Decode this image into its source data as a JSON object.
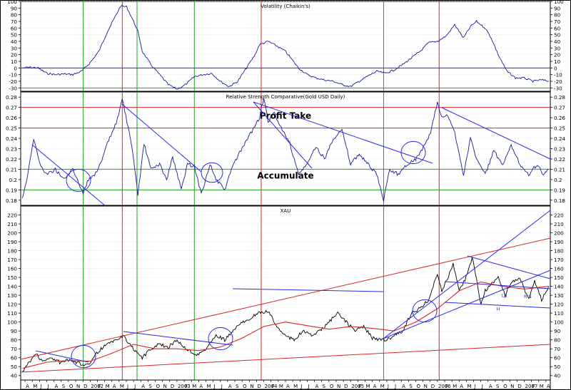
{
  "chart_data": [
    {
      "type": "line",
      "title": "Volatility (Chaikin's)",
      "ylim": [
        -35,
        100
      ],
      "y_ticks": [
        -30,
        -20,
        -10,
        0,
        10,
        20,
        30,
        40,
        50,
        60,
        70,
        80,
        90,
        100
      ],
      "h_lines": [
        {
          "y": 0,
          "color": "#2a2ae8"
        },
        {
          "y": -30,
          "color": "#22a022"
        }
      ],
      "series": [
        {
          "color": "#1a1a9c",
          "x": [
            2001.22,
            2001.3,
            2001.4,
            2001.5,
            2001.6,
            2001.7,
            2001.8,
            2001.9,
            2002.0,
            2002.1,
            2002.2,
            2002.3,
            2002.35,
            2002.42,
            2002.5,
            2002.55,
            2002.6,
            2002.7,
            2002.8,
            2002.9,
            2003.0,
            2003.1,
            2003.2,
            2003.3,
            2003.4,
            2003.5,
            2003.6,
            2003.7,
            2003.8,
            2003.9,
            2003.95,
            2004.05,
            2004.15,
            2004.25,
            2004.4,
            2004.5,
            2004.6,
            2004.7,
            2004.8,
            2004.9,
            2005.0,
            2005.1,
            2005.2,
            2005.3,
            2005.4,
            2005.5,
            2005.6,
            2005.7,
            2005.8,
            2005.9,
            2006.0,
            2006.1,
            2006.2,
            2006.3,
            2006.38,
            2006.45,
            2006.55,
            2006.62,
            2006.7,
            2006.8,
            2006.9,
            2007.0,
            2007.1,
            2007.2,
            2007.28
          ],
          "y": [
            0,
            1,
            0,
            -8,
            -10,
            -9,
            -10,
            -5,
            8,
            25,
            55,
            80,
            93,
            92,
            70,
            55,
            25,
            5,
            -10,
            -25,
            -32,
            -25,
            -13,
            -10,
            -8,
            -20,
            -28,
            -20,
            0,
            20,
            35,
            40,
            33,
            25,
            0,
            -10,
            -15,
            -18,
            -20,
            -25,
            -28,
            -20,
            -12,
            -5,
            -8,
            -3,
            5,
            15,
            25,
            38,
            40,
            48,
            65,
            45,
            62,
            70,
            60,
            45,
            20,
            -5,
            -15,
            -15,
            -20,
            -18,
            -20
          ]
        }
      ]
    },
    {
      "type": "line",
      "title": "Relative Strength Comparative(Gold USD Daily)",
      "ylim": [
        0.175,
        0.285
      ],
      "y_ticks": [
        0.18,
        0.19,
        0.2,
        0.21,
        0.22,
        0.23,
        0.24,
        0.25,
        0.26,
        0.27,
        0.28
      ],
      "h_lines": [
        {
          "y": 0.27,
          "color": "#d82828"
        },
        {
          "y": 0.25,
          "color": "#d82828"
        },
        {
          "y": 0.21,
          "color": "#22a022"
        },
        {
          "y": 0.19,
          "color": "#22a022"
        }
      ],
      "annotations": [
        {
          "text": "Profit Take",
          "x": 2004.25,
          "y": 0.259
        },
        {
          "text": "Accumulate",
          "x": 2004.25,
          "y": 0.201
        }
      ],
      "series": [
        {
          "color": "#1a1a9c",
          "x": [
            2001.22,
            2001.28,
            2001.35,
            2001.42,
            2001.5,
            2001.6,
            2001.7,
            2001.8,
            2001.92,
            2001.98,
            2002.05,
            2002.12,
            2002.2,
            2002.3,
            2002.37,
            2002.45,
            2002.5,
            2002.55,
            2002.62,
            2002.7,
            2002.8,
            2002.88,
            2002.95,
            2003.05,
            2003.12,
            2003.2,
            2003.28,
            2003.38,
            2003.45,
            2003.55,
            2003.65,
            2003.75,
            2003.85,
            2003.95,
            2004.0,
            2004.05,
            2004.12,
            2004.2,
            2004.3,
            2004.4,
            2004.5,
            2004.6,
            2004.7,
            2004.8,
            2004.9,
            2005.0,
            2005.1,
            2005.2,
            2005.3,
            2005.38,
            2005.45,
            2005.55,
            2005.65,
            2005.75,
            2005.85,
            2005.92,
            2006.0,
            2006.05,
            2006.12,
            2006.2,
            2006.3,
            2006.38,
            2006.45,
            2006.55,
            2006.65,
            2006.75,
            2006.85,
            2006.95,
            2007.05,
            2007.15,
            2007.22,
            2007.28
          ],
          "y": [
            0.182,
            0.205,
            0.24,
            0.215,
            0.205,
            0.21,
            0.2,
            0.21,
            0.187,
            0.2,
            0.205,
            0.215,
            0.235,
            0.255,
            0.278,
            0.245,
            0.22,
            0.185,
            0.235,
            0.21,
            0.215,
            0.2,
            0.222,
            0.19,
            0.215,
            0.213,
            0.186,
            0.215,
            0.2,
            0.19,
            0.215,
            0.23,
            0.245,
            0.26,
            0.28,
            0.255,
            0.265,
            0.25,
            0.235,
            0.205,
            0.215,
            0.232,
            0.22,
            0.24,
            0.248,
            0.215,
            0.225,
            0.215,
            0.205,
            0.18,
            0.21,
            0.205,
            0.215,
            0.22,
            0.233,
            0.245,
            0.275,
            0.26,
            0.262,
            0.245,
            0.205,
            0.24,
            0.22,
            0.205,
            0.228,
            0.213,
            0.233,
            0.215,
            0.205,
            0.215,
            0.205,
            0.21
          ]
        }
      ]
    },
    {
      "type": "line",
      "title": "XAU",
      "ylim": [
        35,
        230
      ],
      "y_ticks": [
        40,
        50,
        60,
        70,
        80,
        90,
        100,
        110,
        120,
        130,
        140,
        150,
        160,
        170,
        180,
        190,
        200,
        210,
        220
      ],
      "series": [
        {
          "color": "#000000",
          "x": [
            2001.22,
            2001.3,
            2001.38,
            2001.45,
            2001.55,
            2001.65,
            2001.75,
            2001.85,
            2001.92,
            2002.0,
            2002.1,
            2002.2,
            2002.3,
            2002.38,
            2002.45,
            2002.55,
            2002.6,
            2002.7,
            2002.8,
            2002.9,
            2003.0,
            2003.1,
            2003.2,
            2003.25,
            2003.35,
            2003.45,
            2003.55,
            2003.65,
            2003.75,
            2003.85,
            2003.95,
            2004.05,
            2004.15,
            2004.25,
            2004.35,
            2004.45,
            2004.55,
            2004.65,
            2004.75,
            2004.85,
            2004.95,
            2005.05,
            2005.15,
            2005.25,
            2005.35,
            2005.42,
            2005.5,
            2005.6,
            2005.7,
            2005.8,
            2005.9,
            2006.0,
            2006.05,
            2006.1,
            2006.18,
            2006.25,
            2006.33,
            2006.4,
            2006.45,
            2006.5,
            2006.55,
            2006.6,
            2006.7,
            2006.78,
            2006.85,
            2006.95,
            2007.05,
            2007.12,
            2007.2,
            2007.28
          ],
          "y": [
            45,
            55,
            65,
            55,
            60,
            55,
            57,
            54,
            52,
            55,
            68,
            75,
            80,
            85,
            75,
            65,
            60,
            70,
            75,
            72,
            80,
            70,
            65,
            63,
            72,
            85,
            80,
            90,
            100,
            105,
            110,
            112,
            95,
            85,
            80,
            90,
            85,
            90,
            100,
            110,
            100,
            90,
            95,
            82,
            80,
            80,
            85,
            90,
            110,
            115,
            125,
            155,
            135,
            145,
            165,
            135,
            150,
            172,
            150,
            120,
            135,
            140,
            150,
            130,
            145,
            150,
            125,
            145,
            125,
            140
          ]
        },
        {
          "color": "#d82828",
          "x": [
            2001.22,
            2001.5,
            2001.75,
            2002.0,
            2002.25,
            2002.5,
            2002.75,
            2003.0,
            2003.25,
            2003.5,
            2003.75,
            2004.0,
            2004.25,
            2004.5,
            2004.75,
            2005.0,
            2005.25,
            2005.5,
            2005.75,
            2006.0,
            2006.25,
            2006.5,
            2006.75,
            2007.0,
            2007.28
          ],
          "y": [
            48,
            55,
            57,
            56,
            65,
            75,
            70,
            70,
            68,
            72,
            82,
            95,
            100,
            96,
            92,
            95,
            93,
            90,
            100,
            115,
            135,
            145,
            140,
            137,
            140
          ]
        }
      ],
      "annotations": [
        {
          "text": "LS",
          "x": 2006.77,
          "y": 128
        },
        {
          "text": "H",
          "x": 2006.7,
          "y": 113
        },
        {
          "text": "R S",
          "x": 2007.04,
          "y": 127
        }
      ]
    }
  ],
  "x_axis": {
    "range": [
      2001.2,
      2007.3
    ],
    "month_labels": [
      "A",
      "M",
      "J",
      "J",
      "A",
      "S",
      "O",
      "N",
      "D",
      "2002",
      "F",
      "M",
      "A",
      "M",
      "J",
      "J",
      "A",
      "S",
      "O",
      "N",
      "D",
      "2003",
      "F",
      "M",
      "A",
      "M",
      "J",
      "J",
      "A",
      "S",
      "O",
      "N",
      "D",
      "2004",
      "F",
      "M",
      "A",
      "M",
      "J",
      "J",
      "A",
      "S",
      "O",
      "N",
      "D",
      "2005",
      "F",
      "M",
      "A",
      "M",
      "J",
      "J",
      "A",
      "S",
      "O",
      "N",
      "D",
      "2006",
      "F",
      "M",
      "A",
      "M",
      "J",
      "J",
      "A",
      "S",
      "O",
      "N",
      "D",
      "2007",
      "F",
      "M",
      "A"
    ],
    "first_month": 2001.25
  },
  "vertical_markers": [
    {
      "x": 2001.92,
      "color": "#22a022"
    },
    {
      "x": 2002.37,
      "color": "#d82828"
    },
    {
      "x": 2002.54,
      "color": "#22a022"
    },
    {
      "x": 2003.2,
      "color": "#22a022"
    },
    {
      "x": 2003.97,
      "color": "#d82828"
    },
    {
      "x": 2005.38,
      "color": "#22a022"
    },
    {
      "x": 2006.02,
      "color": "#d82828"
    }
  ]
}
